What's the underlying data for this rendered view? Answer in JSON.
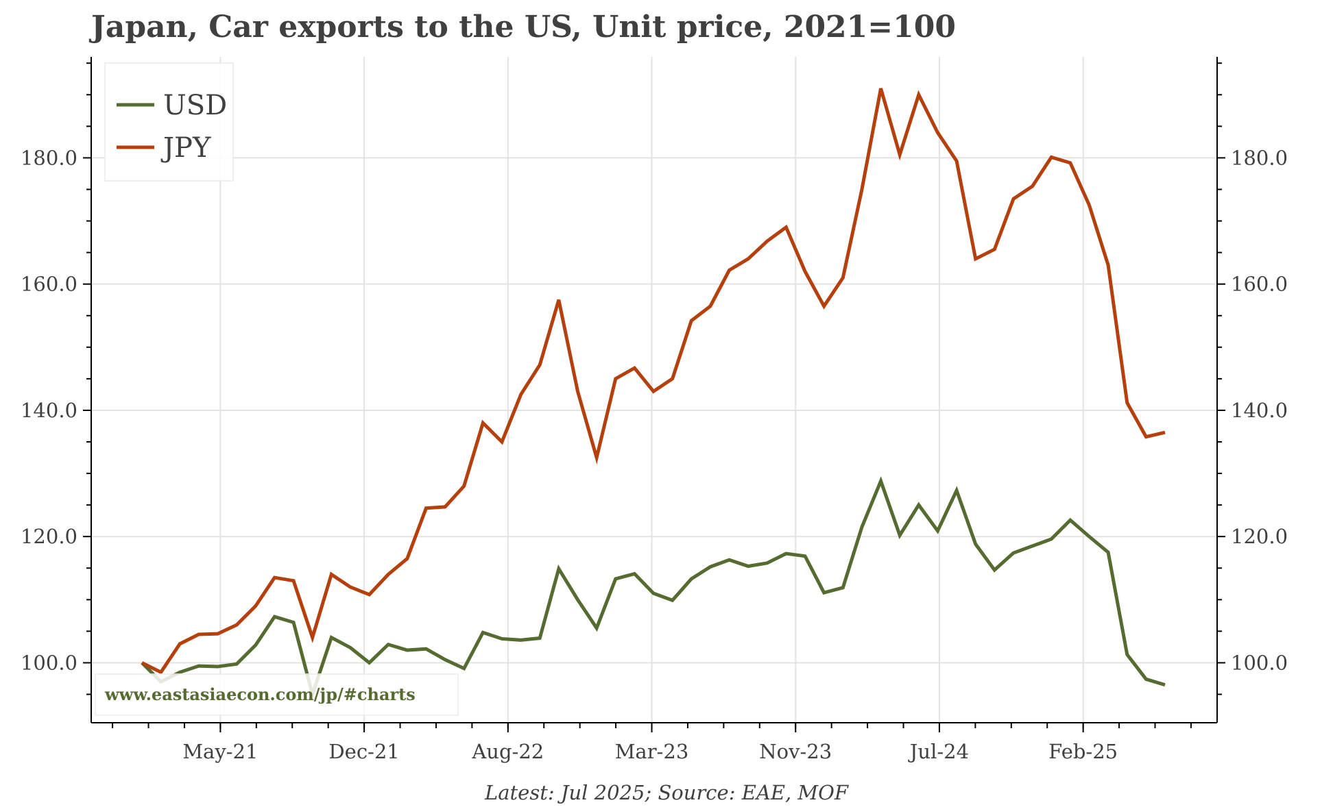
{
  "chart_data": {
    "type": "line",
    "title": "Japan, Car exports to the US, Unit price, 2021=100",
    "footer": "Latest: Jul 2025; Source: EAE, MOF",
    "watermark": "www.eastasiaecon.com/jp/#charts",
    "xlabel": "",
    "ylabel": "",
    "x_start": "Jan-21",
    "x_end": "Jul-25",
    "x_tick_labels": [
      "May-21",
      "Dec-21",
      "Aug-22",
      "Mar-23",
      "Nov-23",
      "Jul-24",
      "Feb-25"
    ],
    "x_tick_index": [
      4.14,
      11.73,
      19.32,
      26.91,
      34.5,
      42.09,
      49.68
    ],
    "y_ticks": [
      100,
      120,
      140,
      160,
      180
    ],
    "y_tick_labels": [
      "100.0",
      "120.0",
      "140.0",
      "160.0",
      "180.0"
    ],
    "ylim": [
      90.5,
      196
    ],
    "grid": true,
    "legend_position": "top-left",
    "series": [
      {
        "name": "USD",
        "color": "#556b2f",
        "values": [
          100,
          97,
          98.5,
          99.5,
          99.4,
          99.8,
          102.8,
          107.3,
          106.4,
          95,
          104,
          102.4,
          100,
          102.9,
          102,
          102.2,
          100.5,
          99.1,
          104.8,
          103.8,
          103.6,
          103.9,
          114.9,
          110,
          105.5,
          113.3,
          114.1,
          111,
          109.9,
          113.3,
          115.2,
          116.3,
          115.3,
          115.8,
          117.3,
          116.9,
          111.1,
          111.9,
          121.5,
          128.8,
          120.2,
          125,
          120.9,
          127.3,
          118.8,
          114.7,
          117.4,
          118.5,
          119.6,
          122.6,
          120,
          117.5,
          101.3,
          97.4,
          96.5
        ]
      },
      {
        "name": "JPY",
        "color": "#b5400c",
        "values": [
          100,
          98.5,
          103,
          104.5,
          104.6,
          106,
          109,
          113.5,
          113,
          104,
          114,
          112,
          110.8,
          114,
          116.5,
          124.5,
          124.7,
          128,
          138,
          135,
          142.5,
          147.2,
          157.5,
          143,
          132.5,
          145,
          146.7,
          143,
          145,
          154.2,
          156.5,
          162.2,
          164,
          166.8,
          169,
          162,
          156.5,
          161,
          175,
          191,
          180.5,
          190,
          184,
          179.5,
          164,
          165.5,
          173.5,
          175.5,
          180.1,
          179.2,
          172.5,
          163,
          141.2,
          135.8,
          136.5
        ]
      }
    ]
  }
}
